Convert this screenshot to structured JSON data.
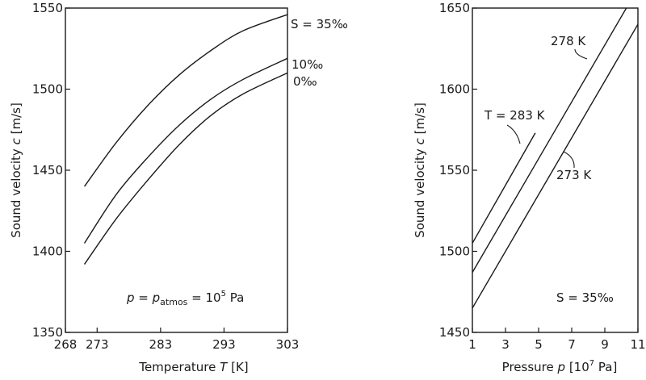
{
  "chart_data": [
    {
      "type": "line",
      "xlabel": "Temperature T [K]",
      "ylabel": "Sound velocity c [m/s]",
      "xlim": [
        268,
        303
      ],
      "ylim": [
        1350,
        1550
      ],
      "xticks": [
        268,
        273,
        283,
        293,
        303
      ],
      "yticks": [
        1350,
        1400,
        1450,
        1500,
        1550
      ],
      "annotation": "p = p_atmos = 10^5 Pa",
      "series": [
        {
          "name": "S = 35‰",
          "x": [
            271,
            276,
            281,
            286,
            291,
            296,
            303
          ],
          "y": [
            1440,
            1467,
            1490,
            1509,
            1524,
            1536,
            1546
          ]
        },
        {
          "name": "10‰",
          "x": [
            271,
            276,
            281,
            286,
            291,
            296,
            303
          ],
          "y": [
            1405,
            1435,
            1458,
            1478,
            1494,
            1506,
            1519
          ]
        },
        {
          "name": "0‰",
          "x": [
            271,
            276,
            281,
            286,
            291,
            296,
            303
          ],
          "y": [
            1392,
            1420,
            1444,
            1466,
            1484,
            1497,
            1510
          ]
        }
      ]
    },
    {
      "type": "line",
      "xlabel": "Pressure p [10^7 Pa]",
      "ylabel": "Sound velocity c [m/s]",
      "xlim": [
        1,
        11
      ],
      "ylim": [
        1450,
        1650
      ],
      "xticks": [
        1,
        3,
        5,
        7,
        9,
        11
      ],
      "yticks": [
        1450,
        1500,
        1550,
        1600,
        1650
      ],
      "annotation": "S = 35‰",
      "series": [
        {
          "name": "T = 283 K",
          "x": [
            1,
            4.8
          ],
          "y": [
            1505,
            1573
          ]
        },
        {
          "name": "278 K",
          "x": [
            1,
            10.3
          ],
          "y": [
            1487,
            1650
          ]
        },
        {
          "name": "273 K",
          "x": [
            1,
            11
          ],
          "y": [
            1465,
            1640
          ]
        }
      ]
    }
  ],
  "left_panel": {
    "ylabel_main": "Sound velocity",
    "ylabel_var": "c",
    "ylabel_unit": "[m/s]",
    "xlabel_main": "Temperature",
    "xlabel_var": "T",
    "xlabel_unit": "[K]",
    "label_35": "S = 35‰",
    "label_10": "10‰",
    "label_0": "0‰",
    "annot_p": "p",
    "annot_eq1": " = ",
    "annot_patm": "p",
    "annot_atmos": "atmos",
    "annot_eq2": " = 10",
    "annot_exp": "5",
    "annot_unit": " Pa"
  },
  "right_panel": {
    "ylabel_main": "Sound velocity",
    "ylabel_var": "c",
    "ylabel_unit": "[m/s]",
    "xlabel_main": "Pressure",
    "xlabel_var": "p",
    "xlabel_unit_pre": "[10",
    "xlabel_unit_exp": "7",
    "xlabel_unit_post": " Pa]",
    "label_283": "T = 283 K",
    "label_278": "278 K",
    "label_273": "273 K",
    "annot_s": "S = 35‰"
  }
}
